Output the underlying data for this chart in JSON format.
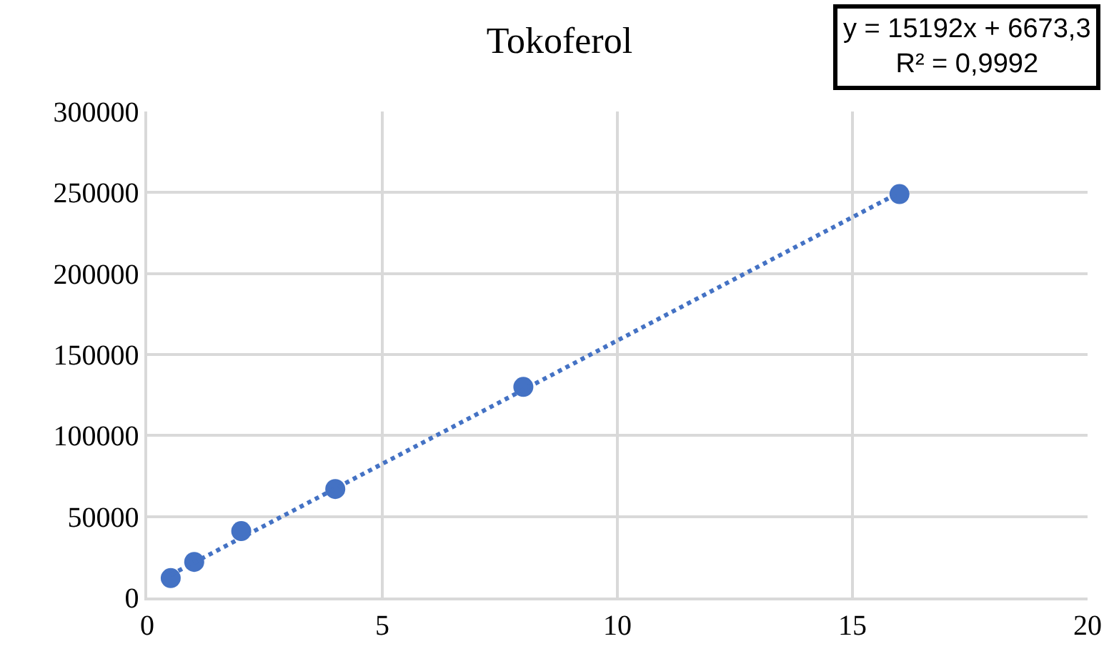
{
  "chart_data": {
    "type": "scatter",
    "title": "Tokoferol",
    "series": [
      {
        "color": "#4472c4",
        "marker": "circle",
        "x": [
          0.5,
          1,
          2,
          4,
          8,
          16
        ],
        "values": [
          12000,
          22000,
          41000,
          67000,
          130000,
          249000
        ]
      },
      {
        "type": "line",
        "color": "#4472c4",
        "line_style": "dotted",
        "marker": "none",
        "x": [
          0.5,
          16
        ],
        "values": [
          14000,
          250000
        ]
      }
    ],
    "annotations": [
      "y = 15192x + 6673,3\nR² = 0,9992"
    ],
    "xlim": [
      0,
      20
    ],
    "xticks": [
      0,
      5,
      10,
      15,
      20
    ],
    "ylim": [
      0,
      300000
    ],
    "yticks": [
      0,
      50000,
      100000,
      150000,
      200000,
      250000,
      300000
    ],
    "grid": true
  }
}
